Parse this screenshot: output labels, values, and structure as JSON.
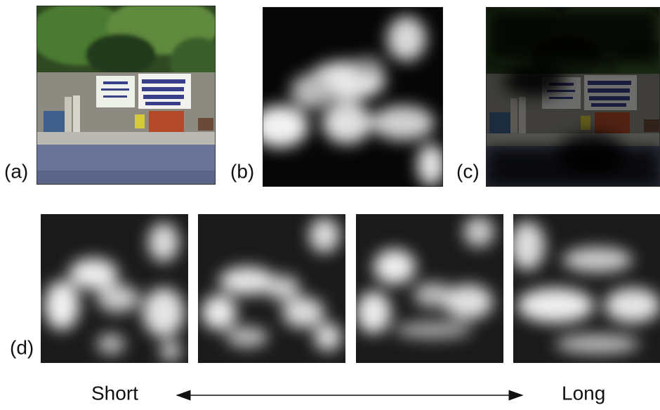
{
  "panels": {
    "a": "(a)",
    "b": "(b)",
    "c": "(c)",
    "d": "(d)"
  },
  "scale": {
    "start": "Short",
    "end": "Long"
  }
}
